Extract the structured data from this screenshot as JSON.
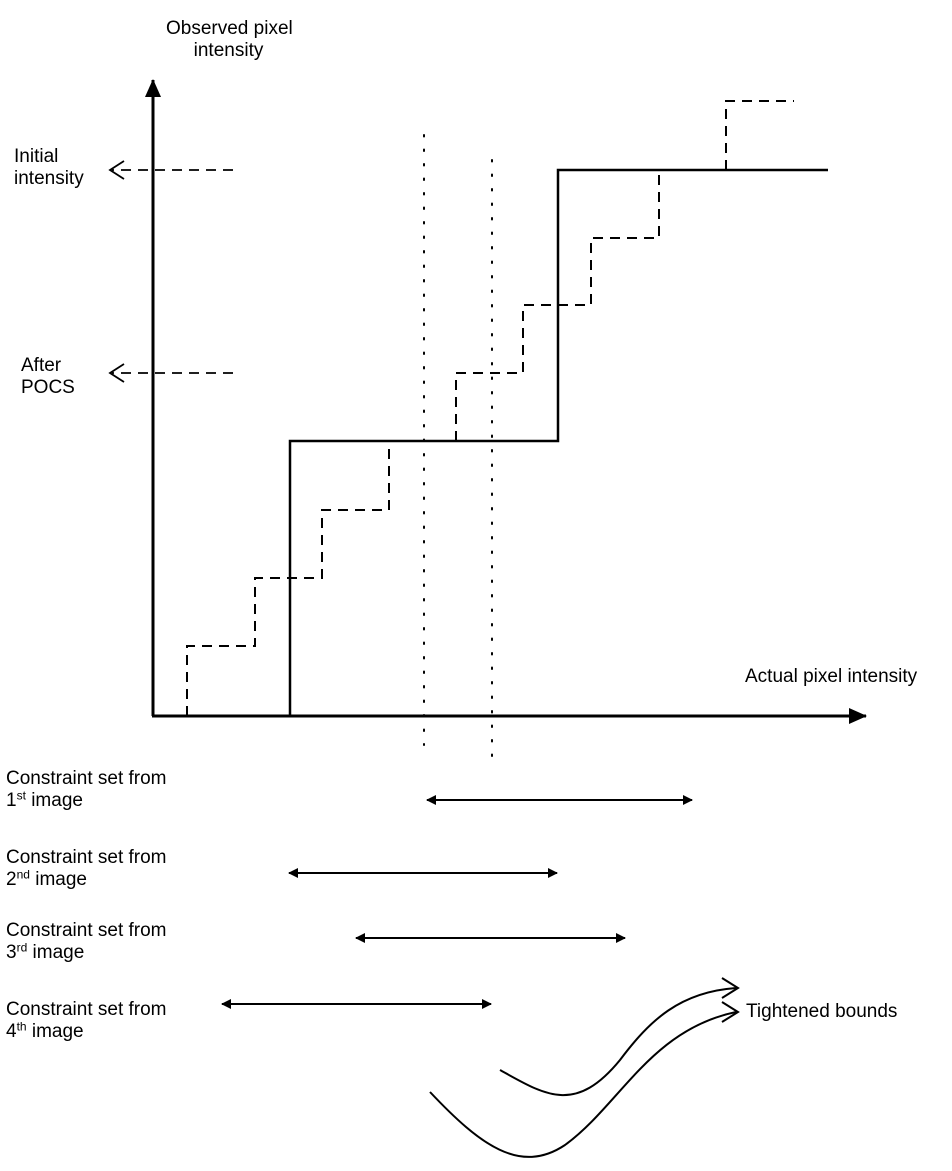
{
  "labels": {
    "y_axis_line1": "Observed pixel",
    "y_axis_line2": "intensity",
    "x_axis": "Actual pixel intensity",
    "initial_line1": "Initial",
    "initial_line2": "intensity",
    "after_line1": "After",
    "after_line2": "POCS",
    "tightened": "Tightened bounds"
  },
  "constraints": [
    {
      "prefix": "Constraint set from",
      "num": "1",
      "sup": "st",
      "suffix": " image"
    },
    {
      "prefix": "Constraint set from",
      "num": "2",
      "sup": "nd",
      "suffix": " image"
    },
    {
      "prefix": "Constraint set from",
      "num": "3",
      "sup": "rd",
      "suffix": " image"
    },
    {
      "prefix": "Constraint set from",
      "num": "4",
      "sup": "th",
      "suffix": " image"
    }
  ],
  "colors": {
    "ink": "#000000",
    "background": "#ffffff"
  }
}
